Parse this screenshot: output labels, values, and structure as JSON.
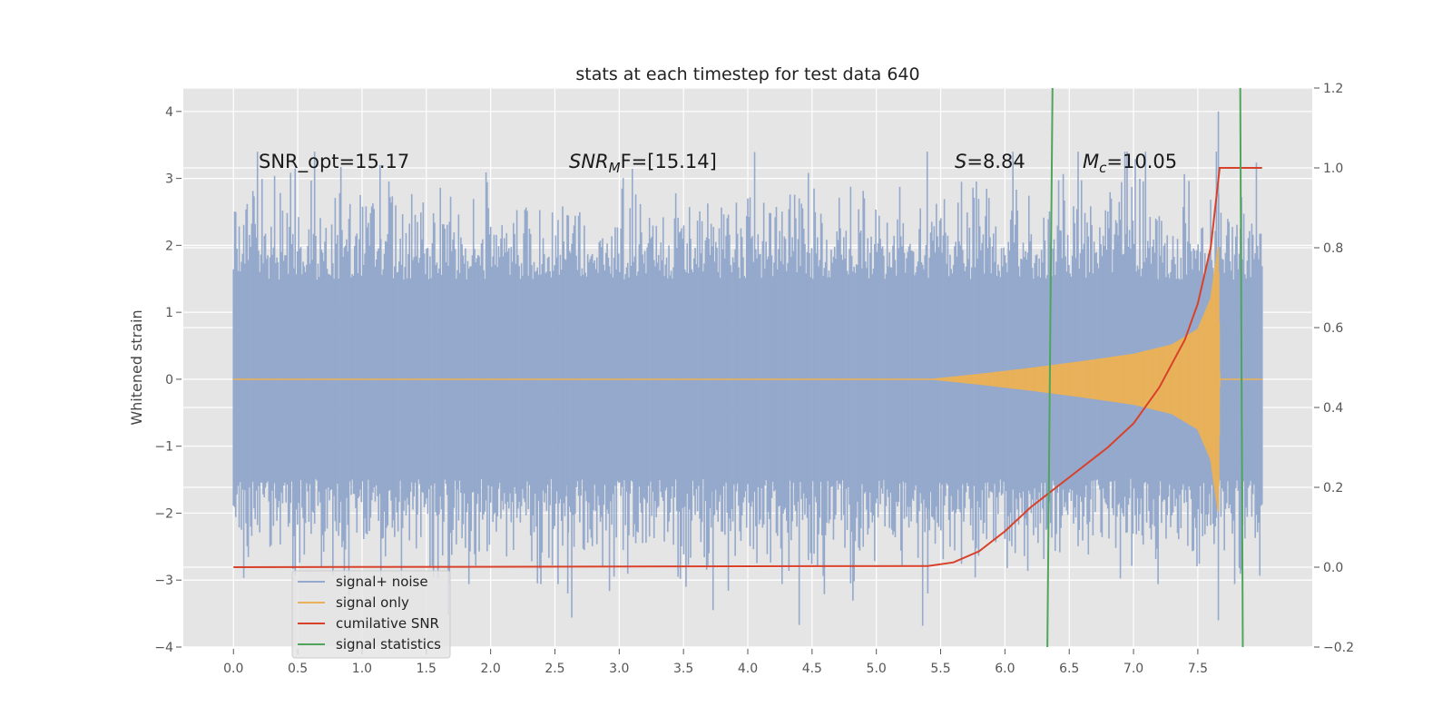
{
  "chart_data": {
    "type": "line",
    "title": "stats at each timestep for test data 640",
    "ylabel": "Whitened strain",
    "xlabel": "",
    "xlim": [
      -0.39,
      8.39
    ],
    "ylim": [
      -4.0,
      4.35
    ],
    "y2lim": [
      -0.2,
      1.2
    ],
    "x_ticks": [
      0.0,
      0.5,
      1.0,
      1.5,
      2.0,
      2.5,
      3.0,
      3.5,
      4.0,
      4.5,
      5.0,
      5.5,
      6.0,
      6.5,
      7.0,
      7.5
    ],
    "x_tick_labels": [
      "0.0",
      "0.5",
      "1.0",
      "1.5",
      "2.0",
      "2.5",
      "3.0",
      "3.5",
      "4.0",
      "4.5",
      "5.0",
      "5.5",
      "6.0",
      "6.5",
      "7.0",
      "7.5"
    ],
    "y_ticks": [
      -4,
      -3,
      -2,
      -1,
      0,
      1,
      2,
      3,
      4
    ],
    "y_tick_labels": [
      "−4",
      "−3",
      "−2",
      "−1",
      "0",
      "1",
      "2",
      "3",
      "4"
    ],
    "y2_ticks": [
      -0.2,
      0.0,
      0.2,
      0.4,
      0.6,
      0.8,
      1.0,
      1.2
    ],
    "y2_tick_labels": [
      "−0.2",
      "0.0",
      "0.2",
      "0.4",
      "0.6",
      "0.8",
      "1.0",
      "1.2"
    ],
    "annotations": {
      "snr_opt": "SNR_opt=15.17",
      "snr_mf_main": "SNR",
      "snr_mf_sub": "M",
      "snr_mf_rest": "F=[15.14]",
      "s_symbol": "S",
      "s_value": "=8.84",
      "mc_symbol": "M",
      "mc_sub": "c",
      "mc_value": "=10.05"
    },
    "series": [
      {
        "name": "signal+ noise",
        "color": "#94a9cc",
        "x_range": [
          0.0,
          8.0
        ],
        "typical_amplitude": 1.75,
        "peak_max": 4.0,
        "peak_min": -3.6
      },
      {
        "name": "signal only",
        "color": "#e8b15a",
        "envelope_x": [
          5.4,
          5.8,
          6.2,
          6.6,
          7.0,
          7.3,
          7.5,
          7.6,
          7.66,
          7.67,
          8.0
        ],
        "envelope_amp": [
          0.0,
          0.08,
          0.17,
          0.27,
          0.38,
          0.52,
          0.75,
          1.2,
          2.0,
          0.0,
          0.0
        ]
      },
      {
        "name": "cumilative SNR",
        "color": "#d8412a",
        "axis": "right",
        "x": [
          0.0,
          5.4,
          5.6,
          5.8,
          6.0,
          6.2,
          6.4,
          6.6,
          6.8,
          7.0,
          7.2,
          7.4,
          7.5,
          7.6,
          7.67,
          7.68,
          8.0
        ],
        "y": [
          0.0,
          0.003,
          0.012,
          0.04,
          0.09,
          0.15,
          0.2,
          0.25,
          0.3,
          0.36,
          0.45,
          0.57,
          0.66,
          0.8,
          1.0,
          1.0,
          1.0
        ]
      },
      {
        "name": "signal statistics",
        "color": "#4ea55b",
        "lines": [
          {
            "x_bottom": 6.33,
            "x_top": 6.37
          },
          {
            "x_bottom": 7.85,
            "x_top": 7.83
          }
        ]
      }
    ],
    "legend_position": "lower-left",
    "grid": true
  }
}
